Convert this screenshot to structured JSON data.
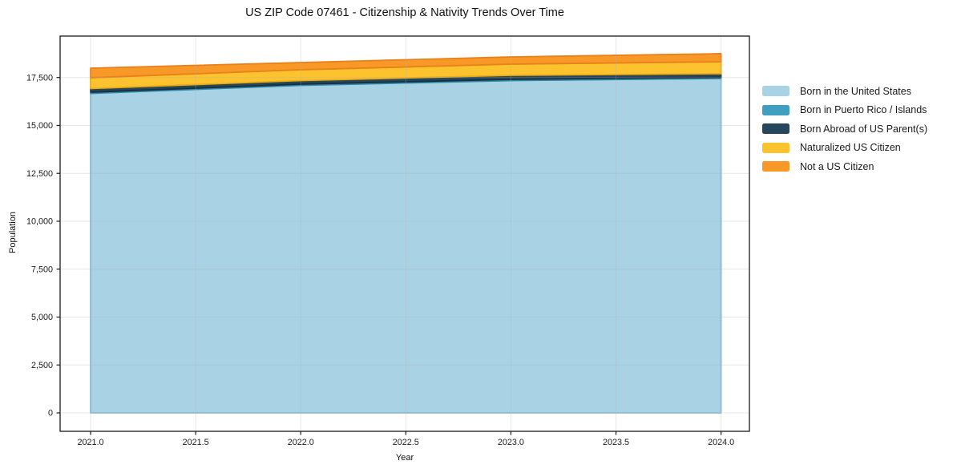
{
  "title": "US ZIP Code 07461 - Citizenship & Nativity Trends Over Time",
  "chart_data": {
    "type": "area",
    "stacked": true,
    "title": "US ZIP Code 07461 - Citizenship & Nativity Trends Over Time",
    "xlabel": "Year",
    "ylabel": "Population",
    "x": [
      2021,
      2022,
      2023,
      2024
    ],
    "series": [
      {
        "name": "Born in the United States",
        "color": "#a9d3e5",
        "edge_color": "#86bed6",
        "values": [
          16670,
          17090,
          17340,
          17450
        ]
      },
      {
        "name": "Born in Puerto Rico / Islands",
        "color": "#3e9fc1",
        "edge_color": "#2d87a7",
        "values": [
          65,
          65,
          65,
          60
        ]
      },
      {
        "name": "Born Abroad of US Parent(s)",
        "color": "#26465c",
        "edge_color": "#182f40",
        "values": [
          190,
          185,
          210,
          190
        ]
      },
      {
        "name": "Naturalized US Citizen",
        "color": "#fdc32e",
        "edge_color": "#ecab12",
        "values": [
          565,
          565,
          585,
          625
        ]
      },
      {
        "name": "Not a US Citizen",
        "color": "#f89827",
        "edge_color": "#e8811c",
        "values": [
          500,
          375,
          375,
          420
        ]
      }
    ],
    "totals": [
      17990,
      18280,
      18575,
      18745
    ],
    "x_ticks": [
      2021.0,
      2021.5,
      2022.0,
      2022.5,
      2023.0,
      2023.5,
      2024.0
    ],
    "x_tick_labels": [
      "2021.0",
      "2021.5",
      "2022.0",
      "2022.5",
      "2023.0",
      "2023.5",
      "2024.0"
    ],
    "y_ticks": [
      0,
      2500,
      5000,
      7500,
      10000,
      12500,
      15000,
      17500
    ],
    "y_tick_labels": [
      "0",
      "2,500",
      "5,000",
      "7,500",
      "10,000",
      "12,500",
      "15,000",
      "17,500"
    ],
    "xlim": [
      2020.855,
      2024.135
    ],
    "ylim": [
      -962,
      19663
    ],
    "grid": true,
    "grid_color": "#b0b0b0",
    "grid_alpha": 0.3,
    "legend_position": "right",
    "spine_color": "#1a1a1a",
    "background": "#ffffff"
  }
}
